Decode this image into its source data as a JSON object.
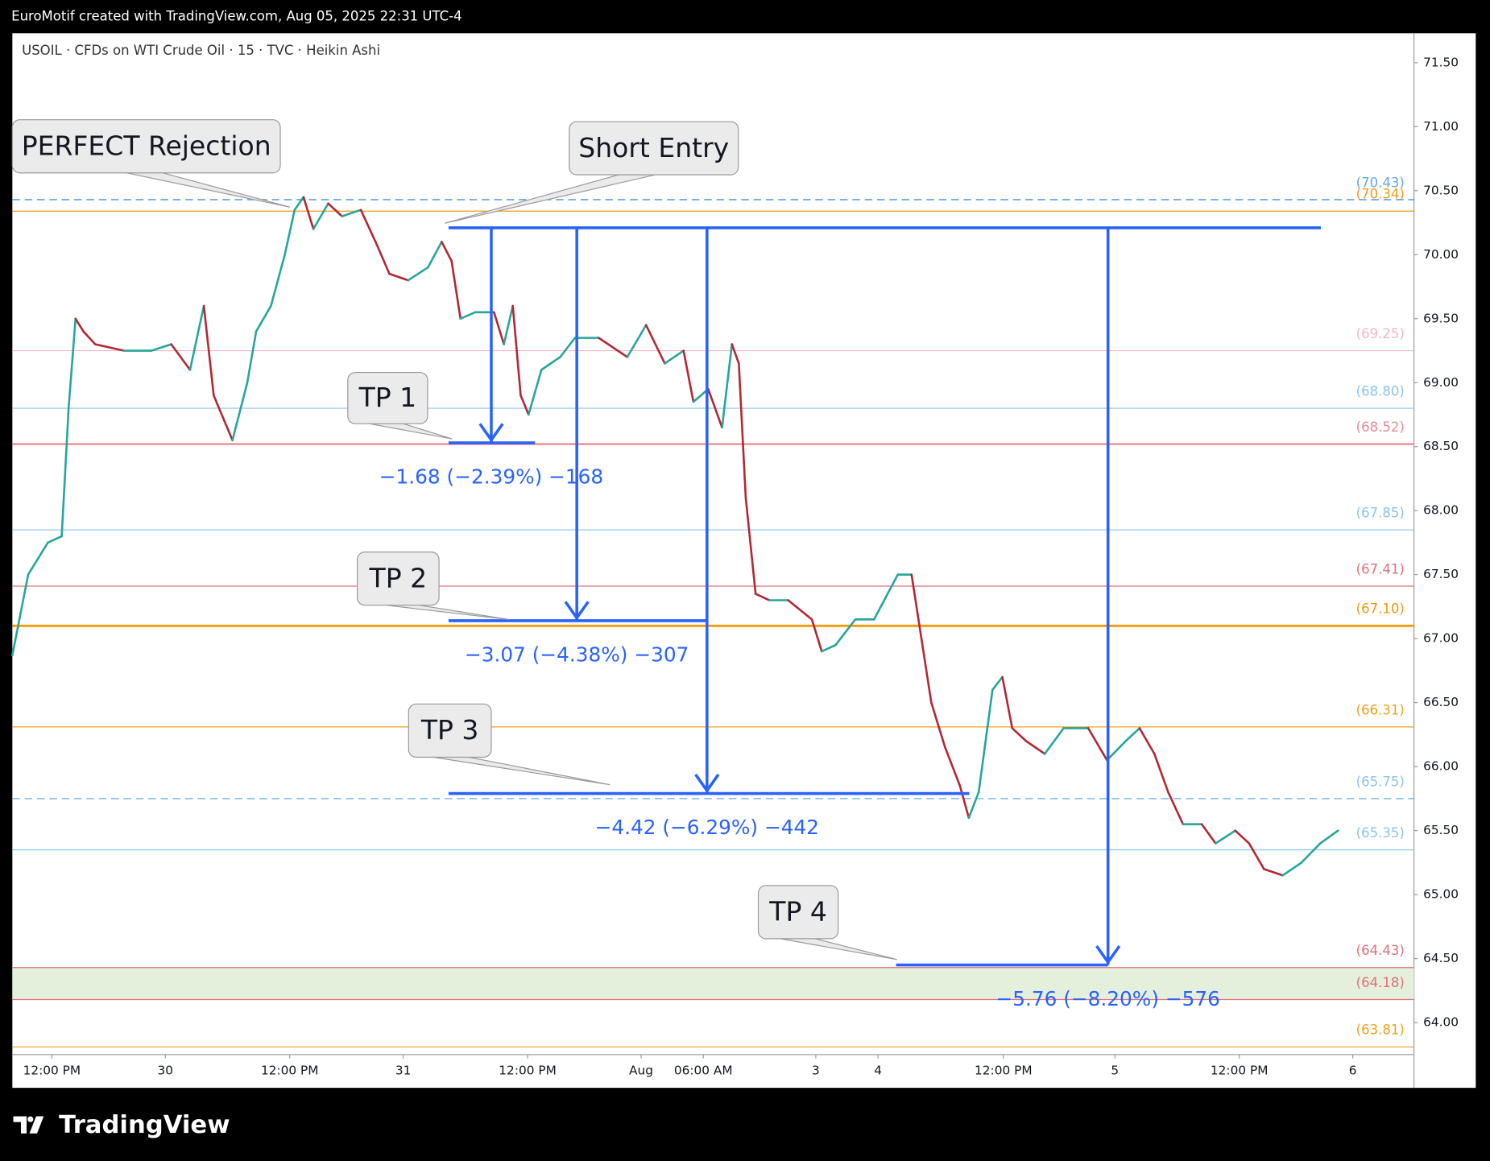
{
  "header": {
    "text": "EuroMotif created with TradingView.com, Aug 05, 2025 22:31 UTC-4"
  },
  "footer": {
    "brand": "TradingView"
  },
  "chart_data": {
    "type": "line",
    "title": "USOIL · CFDs on WTI Crude Oil · 15 · TVC · Heikin Ashi",
    "up_color": "#26a69a",
    "down_color": "#b22833",
    "x": [
      0,
      1.6,
      3.6,
      5.0,
      5.7,
      6.4,
      7.2,
      8.4,
      11.3,
      14.1,
      16.1,
      18.0,
      19.4,
      20.4,
      22.3,
      23.8,
      24.7,
      26.2,
      27.6,
      28.6,
      29.5,
      30.5,
      32.0,
      33.4,
      35.3,
      36.8,
      38.2,
      40.1,
      42.1,
      43.5,
      44.5,
      45.4,
      46.9,
      48.8,
      49.8,
      50.7,
      51.5,
      52.3,
      53.6,
      55.5,
      57.0,
      59.4,
      62.3,
      64.2,
      66.1,
      68.0,
      69.0,
      70.5,
      71.9,
      72.9,
      73.6,
      74.3,
      75.3,
      76.7,
      78.6,
      81.0,
      82.0,
      83.4,
      85.4,
      87.3,
      89.7,
      91.1,
      92.1,
      93.1,
      94.5,
      96.0,
      96.9,
      97.9,
      99.3,
      100.3,
      101.3,
      102.7,
      104.6,
      106.5,
      109.0,
      110.9,
      112.8,
      114.2,
      115.7,
      117.1,
      118.6,
      120.5,
      121.9,
      123.9,
      125.3,
      126.8,
      128.7,
      130.6,
      132.5,
      134.3
    ],
    "values": [
      66.87,
      67.5,
      67.75,
      67.8,
      68.8,
      69.5,
      69.4,
      69.3,
      69.25,
      69.25,
      69.3,
      69.1,
      69.6,
      68.9,
      68.55,
      69.0,
      69.4,
      69.6,
      70.0,
      70.35,
      70.45,
      70.2,
      70.4,
      70.3,
      70.35,
      70.1,
      69.85,
      69.8,
      69.9,
      70.1,
      69.95,
      69.5,
      69.55,
      69.55,
      69.3,
      69.6,
      68.9,
      68.75,
      69.1,
      69.2,
      69.35,
      69.35,
      69.2,
      69.45,
      69.15,
      69.25,
      68.85,
      68.95,
      68.65,
      69.3,
      69.15,
      68.1,
      67.35,
      67.3,
      67.3,
      67.15,
      66.9,
      66.95,
      67.15,
      67.15,
      67.5,
      67.5,
      67.0,
      66.5,
      66.15,
      65.85,
      65.6,
      65.8,
      66.6,
      66.7,
      66.3,
      66.2,
      66.1,
      66.3,
      66.3,
      66.05,
      66.2,
      66.3,
      66.1,
      65.8,
      65.55,
      65.55,
      65.4,
      65.5,
      65.4,
      65.2,
      65.15,
      65.25,
      65.4,
      65.5
    ],
    "xlim": [
      0,
      142
    ],
    "xticks": [
      {
        "value": 4.0,
        "label": "12:00 PM"
      },
      {
        "value": 15.5,
        "label": "30"
      },
      {
        "value": 28.1,
        "label": "12:00 PM"
      },
      {
        "value": 39.6,
        "label": "31"
      },
      {
        "value": 52.2,
        "label": "12:00 PM"
      },
      {
        "value": 63.7,
        "label": "Aug"
      },
      {
        "value": 70.0,
        "label": "06:00 AM"
      },
      {
        "value": 81.4,
        "label": "3"
      },
      {
        "value": 87.7,
        "label": "4"
      },
      {
        "value": 100.4,
        "label": "12:00 PM"
      },
      {
        "value": 111.7,
        "label": "5"
      },
      {
        "value": 124.3,
        "label": "12:00 PM"
      },
      {
        "value": 135.8,
        "label": "6"
      }
    ],
    "ylim": [
      63.75,
      71.73
    ],
    "yticks": [
      {
        "value": 64,
        "label": "64.00"
      },
      {
        "value": 64.5,
        "label": "64.50"
      },
      {
        "value": 65,
        "label": "65.00"
      },
      {
        "value": 65.5,
        "label": "65.50"
      },
      {
        "value": 66,
        "label": "66.00"
      },
      {
        "value": 66.5,
        "label": "66.50"
      },
      {
        "value": 67,
        "label": "67.00"
      },
      {
        "value": 67.5,
        "label": "67.50"
      },
      {
        "value": 68,
        "label": "68.00"
      },
      {
        "value": 68.5,
        "label": "68.50"
      },
      {
        "value": 69,
        "label": "69.00"
      },
      {
        "value": 69.5,
        "label": "69.50"
      },
      {
        "value": 70,
        "label": "70.00"
      },
      {
        "value": 70.5,
        "label": "70.50"
      },
      {
        "value": 71,
        "label": "71.00"
      },
      {
        "value": 71.5,
        "label": "71.50"
      }
    ],
    "levels": [
      {
        "value": 70.43,
        "label": "(70.43)",
        "color": "#64a8e8",
        "dashed": true,
        "width": 1.5
      },
      {
        "value": 70.34,
        "label": "(70.34)",
        "color": "#f29a1a",
        "dashed": false,
        "width": 1
      },
      {
        "value": 69.25,
        "label": "(69.25)",
        "color": "#f4b8c4",
        "dashed": false,
        "width": 1
      },
      {
        "value": 68.8,
        "label": "(68.80)",
        "color": "#8cc4ee",
        "dashed": false,
        "width": 1
      },
      {
        "value": 68.52,
        "label": "(68.52)",
        "color": "#ee8a8f",
        "dashed": false,
        "width": 2
      },
      {
        "value": 67.85,
        "label": "(67.85)",
        "color": "#8cc4ee",
        "dashed": false,
        "width": 1
      },
      {
        "value": 67.41,
        "label": "(67.41)",
        "color": "#e0707a",
        "dashed": false,
        "width": 1
      },
      {
        "value": 67.1,
        "label": "(67.10)",
        "color": "#f39a0e",
        "dashed": false,
        "width": 2.5
      },
      {
        "value": 66.31,
        "label": "(66.31)",
        "color": "#f0a020",
        "dashed": false,
        "width": 1
      },
      {
        "value": 65.75,
        "label": "(65.75)",
        "color": "#8cc4ee",
        "dashed": true,
        "width": 1.5
      },
      {
        "value": 65.35,
        "label": "(65.35)",
        "color": "#8cc4ee",
        "dashed": false,
        "width": 1
      },
      {
        "value": 64.43,
        "label": "(64.43)",
        "color": "#e0707a",
        "dashed": false,
        "width": 1,
        "zone_color": "#e4f0dc"
      },
      {
        "value": 64.18,
        "label": "(64.18)",
        "color": "#e0707a",
        "dashed": false,
        "width": 1
      },
      {
        "value": 63.81,
        "label": "(63.81)",
        "color": "#f0a020",
        "dashed": false,
        "width": 1
      }
    ],
    "annotations": [
      "PERFECT Rejection",
      "Short Entry"
    ],
    "entry": 70.21,
    "targets": [
      {
        "label": "TP 1",
        "price": 68.53,
        "measure": "−1.68 (−2.39%) −168"
      },
      {
        "label": "TP 2",
        "price": 67.14,
        "measure": "−3.07 (−4.38%) −307"
      },
      {
        "label": "TP 3",
        "price": 65.79,
        "measure": "−4.42 (−6.29%) −442"
      },
      {
        "label": "TP 4",
        "price": 64.45,
        "measure": "−5.76 (−8.20%) −576"
      }
    ],
    "measure_color": "#2962ff"
  }
}
